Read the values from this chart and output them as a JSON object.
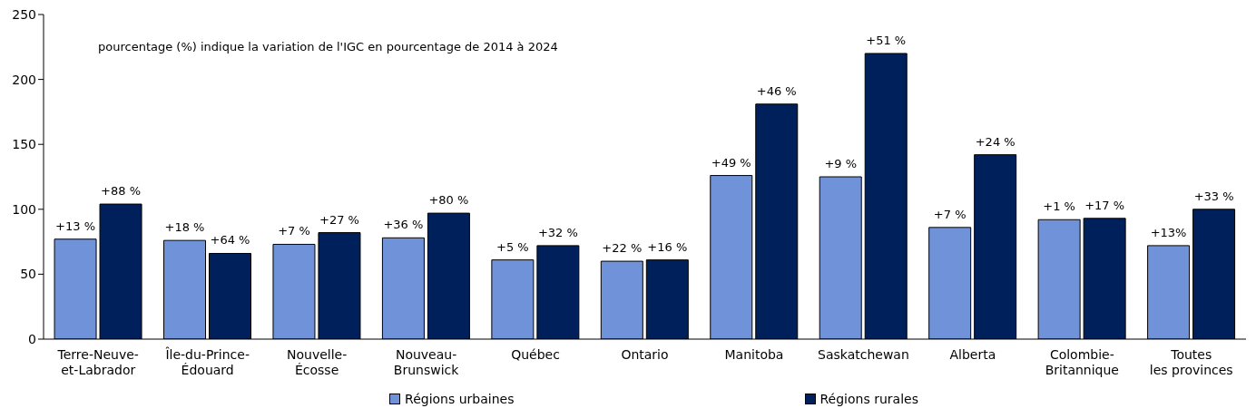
{
  "chart_data": {
    "type": "bar",
    "annotations": [
      "pourcentage (%) indique la variation de l'IGC en pourcentage de 2014 à 2024",
      {
        "text": "+13 %",
        "x": "Terre-Neuve-\net-Labrador",
        "y": 77
      },
      {
        "text": "+88 %",
        "x": "Terre-Neuve-\net-Labrador",
        "y": 104
      },
      {
        "text": "+18 %",
        "x": "Île-du-Prince-\nÉdouard",
        "y": 76
      },
      {
        "text": "+64 %",
        "x": "Île-du-Prince-\nÉdouard",
        "y": 66
      },
      {
        "text": "+7 %",
        "x": "Nouvelle-\nÉcosse",
        "y": 73
      },
      {
        "text": "+27 %",
        "x": "Nouvelle-\nÉcosse",
        "y": 82
      },
      {
        "text": "+36 %",
        "x": "Nouveau-\nBrunswick",
        "y": 78
      },
      {
        "text": "+80 %",
        "x": "Nouveau-\nBrunswick",
        "y": 97
      },
      {
        "text": "+5 %",
        "x": "Québec",
        "y": 61
      },
      {
        "text": "+32 %",
        "x": "Québec",
        "y": 72
      },
      {
        "text": "+22 %",
        "x": "Ontario",
        "y": 60
      },
      {
        "text": "+16 %",
        "x": "Ontario",
        "y": 61
      },
      {
        "text": "+49 %",
        "x": "Manitoba",
        "y": 126
      },
      {
        "text": "+46 %",
        "x": "Manitoba",
        "y": 181
      },
      {
        "text": "+9 %",
        "x": "Saskatchewan",
        "y": 125
      },
      {
        "text": "+51 %",
        "x": "Saskatchewan",
        "y": 220
      },
      {
        "text": "+7 %",
        "x": "Alberta",
        "y": 86
      },
      {
        "text": "+24 %",
        "x": "Alberta",
        "y": 142
      },
      {
        "text": "+1 %",
        "x": "Colombie-\nBritannique",
        "y": 92
      },
      {
        "text": "+17 %",
        "x": "Colombie-\nBritannique",
        "y": 93
      },
      {
        "text": "+13%",
        "x": "Toutes\nles provinces",
        "y": 72
      },
      {
        "text": "+33 %",
        "x": "Toutes\nles provinces",
        "y": 100
      }
    ],
    "categories": [
      "Terre-Neuve-\net-Labrador",
      "Île-du-Prince-\nÉdouard",
      "Nouvelle-\nÉcosse",
      "Nouveau-\nBrunswick",
      "Québec",
      "Ontario",
      "Manitoba",
      "Saskatchewan",
      "Alberta",
      "Colombie-\nBritannique",
      "Toutes\nles provinces"
    ],
    "series": [
      {
        "name": "Régions urbaines",
        "color": "#7092d8",
        "values": [
          77,
          76,
          73,
          78,
          61,
          60,
          126,
          125,
          86,
          92,
          72
        ]
      },
      {
        "name": "Régions rurales",
        "color": "#00205b",
        "values": [
          104,
          66,
          82,
          97,
          72,
          61,
          181,
          220,
          142,
          93,
          100
        ]
      }
    ],
    "ylim": [
      0,
      250
    ],
    "yticks": [
      0,
      50,
      100,
      150,
      200,
      250
    ],
    "grid": false,
    "legend": "bottom"
  }
}
